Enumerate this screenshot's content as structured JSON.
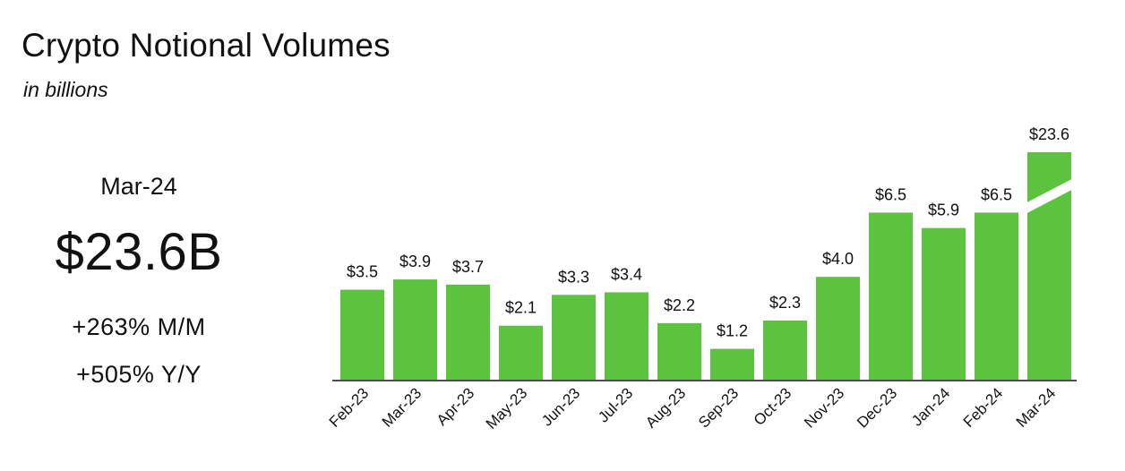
{
  "header": {
    "title": "Crypto Notional Volumes",
    "subtitle": "in billions"
  },
  "kpi": {
    "period": "Mar-24",
    "value": "$23.6B",
    "mm_change": "+263% M/M",
    "yy_change": "+505% Y/Y"
  },
  "chart_data": {
    "type": "bar",
    "categories": [
      "Feb-23",
      "Mar-23",
      "Apr-23",
      "May-23",
      "Jun-23",
      "Jul-23",
      "Aug-23",
      "Sep-23",
      "Oct-23",
      "Nov-23",
      "Dec-23",
      "Jan-24",
      "Feb-24",
      "Mar-24"
    ],
    "values": [
      3.5,
      3.9,
      3.7,
      2.1,
      3.3,
      3.4,
      2.2,
      1.2,
      2.3,
      4.0,
      6.5,
      5.9,
      6.5,
      23.6
    ],
    "data_labels": [
      "$3.5",
      "$3.9",
      "$3.7",
      "$2.1",
      "$3.3",
      "$3.4",
      "$2.2",
      "$1.2",
      "$2.3",
      "$4.0",
      "$6.5",
      "$5.9",
      "$6.5",
      "$23.6"
    ],
    "title": "Crypto Notional Volumes",
    "subtitle": "in billions",
    "xlabel": "",
    "ylabel": "",
    "axis_break_on": "Mar-24",
    "bar_color": "#5bc33d",
    "grid": false,
    "legend": "none"
  }
}
